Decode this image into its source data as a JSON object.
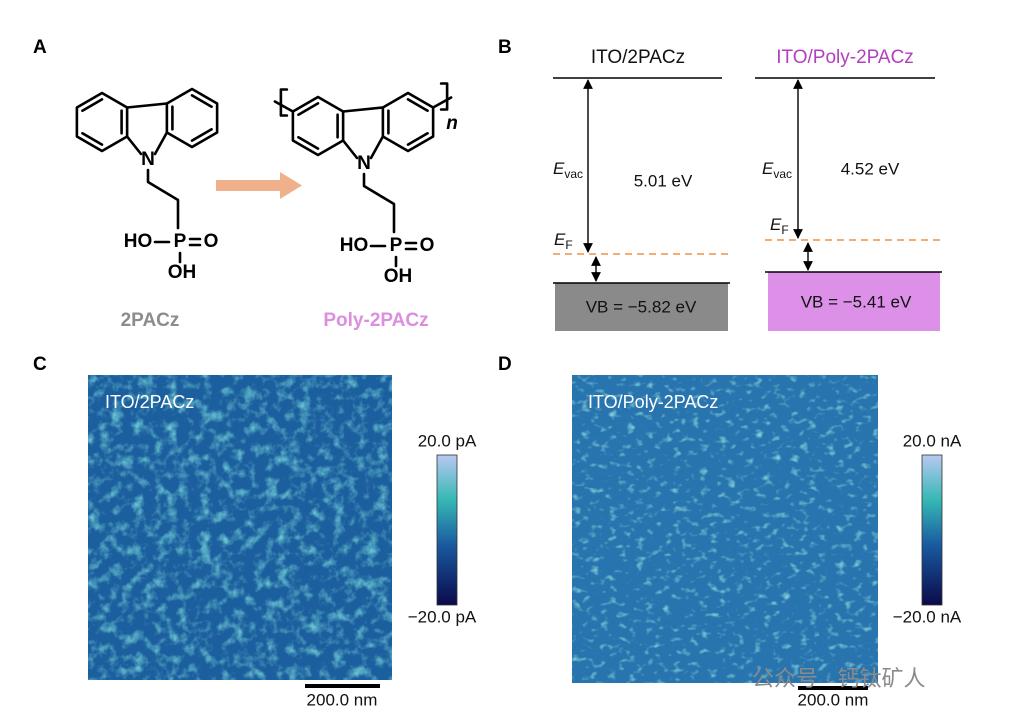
{
  "panel_labels": [
    "A",
    "B",
    "C",
    "D"
  ],
  "panel_a": {
    "atoms": {
      "nitrogen": "N",
      "ho": "HO",
      "p": "P",
      "o": "O",
      "oh": "OH",
      "repeat": "n"
    },
    "monomer_label": "2PACz",
    "polymer_label": "Poly-2PACz"
  },
  "panel_b": {
    "left": {
      "title": "ITO/2PACz",
      "e_symbol": "E",
      "vac_subscript": "vac",
      "gap": "5.01 eV",
      "f_subscript": "F",
      "vb": "VB = −5.82 eV"
    },
    "right": {
      "title": "ITO/Poly-2PACz",
      "e_symbol": "E",
      "vac_subscript": "vac",
      "gap": "4.52 eV",
      "f_subscript": "F",
      "vb": "VB = −5.41 eV"
    }
  },
  "panel_c": {
    "label": "ITO/2PACz",
    "colorbar_max": "20.0 pA",
    "colorbar_min": "−20.0 pA",
    "scale": "200.0 nm"
  },
  "panel_d": {
    "label": "ITO/Poly-2PACz",
    "colorbar_max": "20.0 nA",
    "colorbar_min": "−20.0 nA",
    "scale": "200.0 nm"
  },
  "watermark": "公众号 · 钙钛矿人"
}
